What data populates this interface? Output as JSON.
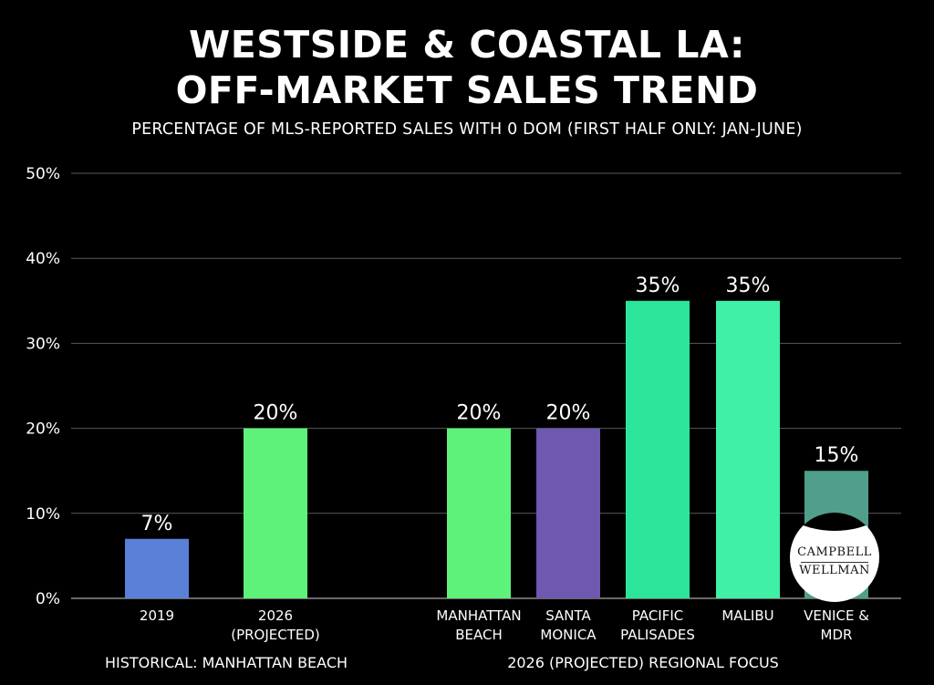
{
  "title_lines": [
    "WESTSIDE & COASTAL LA:",
    "OFF-MARKET SALES TREND"
  ],
  "subtitle": "PERCENTAGE OF MLS-REPORTED SALES WITH 0 DOM (FIRST HALF ONLY: JAN-JUNE)",
  "logo": {
    "lines": [
      "CAMPBELL",
      "WELLMAN"
    ]
  },
  "chart_data": {
    "type": "bar",
    "ylim": [
      0,
      50
    ],
    "yticks": [
      0,
      10,
      20,
      30,
      40,
      50
    ],
    "ytick_labels": [
      "0%",
      "10%",
      "20%",
      "30%",
      "40%",
      "50%"
    ],
    "grid": true,
    "value_suffix": "%",
    "groups": [
      {
        "label": "HISTORICAL: MANHATTAN BEACH",
        "bars": [
          {
            "category": [
              "2019"
            ],
            "value": 7,
            "value_label": "7%",
            "color": "#5b80d8"
          },
          {
            "category": [
              "2026",
              "(PROJECTED)"
            ],
            "value": 20,
            "value_label": "20%",
            "color": "#5ef27a"
          }
        ]
      },
      {
        "label": "2026 (PROJECTED) REGIONAL FOCUS",
        "bars": [
          {
            "category": [
              "MANHATTAN",
              "BEACH"
            ],
            "value": 20,
            "value_label": "20%",
            "color": "#5ef27a"
          },
          {
            "category": [
              "SANTA",
              "MONICA"
            ],
            "value": 20,
            "value_label": "20%",
            "color": "#6e58b0"
          },
          {
            "category": [
              "PACIFIC",
              "PALISADES"
            ],
            "value": 35,
            "value_label": "35%",
            "color": "#2ce59a"
          },
          {
            "category": [
              "MALIBU"
            ],
            "value": 35,
            "value_label": "35%",
            "color": "#3ff0a6"
          },
          {
            "category": [
              "VENICE &",
              "MDR"
            ],
            "value": 15,
            "value_label": "15%",
            "color": "#4f9f8c"
          }
        ]
      }
    ],
    "colors": {
      "gridline": "#5a5a5a",
      "axis_text": "#ffffff"
    }
  }
}
